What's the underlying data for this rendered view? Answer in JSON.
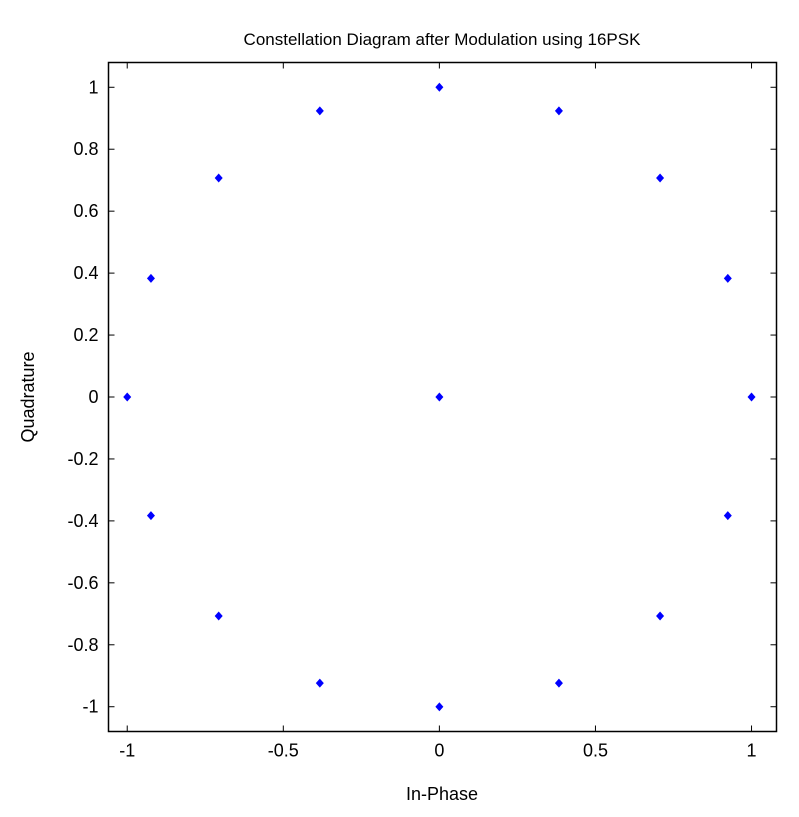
{
  "chart_data": {
    "type": "scatter",
    "title": "Constellation Diagram after Modulation using 16PSK",
    "xlabel": "In-Phase",
    "ylabel": "Quadrature",
    "xlim": [
      -1.06,
      1.08
    ],
    "ylim": [
      -1.08,
      1.08
    ],
    "xticks": [
      -1,
      -0.5,
      0,
      0.5,
      1
    ],
    "yticks": [
      -1,
      -0.8,
      -0.6,
      -0.4,
      -0.2,
      0,
      0.2,
      0.4,
      0.6,
      0.8,
      1
    ],
    "grid": false,
    "marker_color": "#0000ff",
    "points": [
      [
        1,
        0
      ],
      [
        0.924,
        0.383
      ],
      [
        0.707,
        0.707
      ],
      [
        0.383,
        0.924
      ],
      [
        0,
        1
      ],
      [
        -0.383,
        0.924
      ],
      [
        -0.707,
        0.707
      ],
      [
        -0.924,
        0.383
      ],
      [
        -1,
        0
      ],
      [
        -0.924,
        -0.383
      ],
      [
        -0.707,
        -0.707
      ],
      [
        -0.383,
        -0.924
      ],
      [
        0,
        -1
      ],
      [
        0.383,
        -0.924
      ],
      [
        0.707,
        -0.707
      ],
      [
        0.924,
        -0.383
      ],
      [
        0,
        0
      ]
    ]
  }
}
